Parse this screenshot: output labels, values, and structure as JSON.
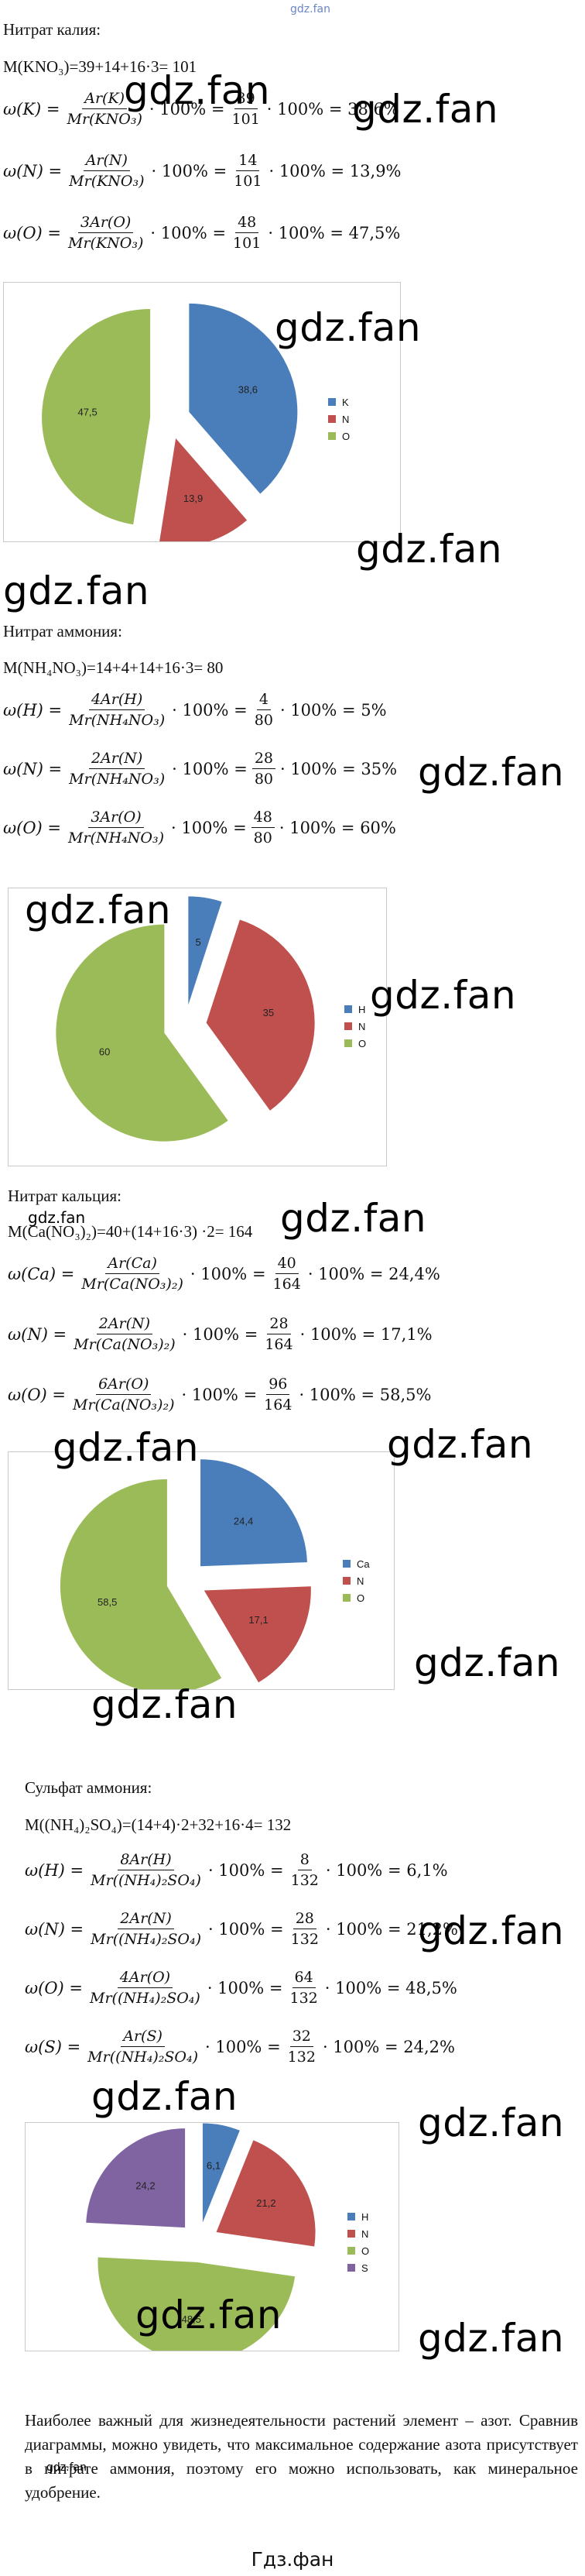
{
  "top_mark": "gdz.fan",
  "sections": [
    {
      "heading": "Нитрат калия:",
      "mass": "M(KNO₃)=39+14+16·3= 101",
      "formulas": [
        {
          "lhs": "ω(K) =",
          "num1": "Ar(K)",
          "den1": "Mr(KNO₃)",
          "mid": "· 100% =",
          "num2": "39",
          "den2": "101",
          "rhs": "· 100% = 38,6%"
        },
        {
          "lhs": "ω(N) =",
          "num1": "Ar(N)",
          "den1": "Mr(KNO₃)",
          "mid": "· 100% =",
          "num2": "14",
          "den2": "101",
          "rhs": "· 100% = 13,9%"
        },
        {
          "lhs": "ω(O) =",
          "num1": "3Ar(O)",
          "den1": "Mr(KNO₃)",
          "mid": "· 100% =",
          "num2": "48",
          "den2": "101",
          "rhs": "· 100% = 47,5%"
        }
      ]
    },
    {
      "heading": "Нитрат аммония:",
      "mass": "M(NH₄NO₃)=14+4+14+16·3= 80",
      "formulas": [
        {
          "lhs": "ω(H) =",
          "num1": "4Ar(H)",
          "den1": "Mr(NH₄NO₃)",
          "mid": "· 100% =",
          "num2": "4",
          "den2": "80",
          "rhs": "· 100% = 5%"
        },
        {
          "lhs": "ω(N) =",
          "num1": "2Ar(N)",
          "den1": "Mr(NH₄NO₃)",
          "mid": "· 100% =",
          "num2": "28",
          "den2": "80",
          "rhs": "· 100% = 35%"
        },
        {
          "lhs": "ω(O) =",
          "num1": "3Ar(O)",
          "den1": "Mr(NH₄NO₃)",
          "mid": "· 100% =",
          "num2": "48",
          "den2": "80",
          "rhs": "· 100% = 60%"
        }
      ]
    },
    {
      "heading": "Нитрат кальция:",
      "mass": "M(Ca(NO₃)₂)=40+(14+16·3) ·2= 164",
      "formulas": [
        {
          "lhs": "ω(Ca) =",
          "num1": "Ar(Ca)",
          "den1": "Mr(Ca(NO₃)₂)",
          "mid": "· 100% =",
          "num2": "40",
          "den2": "164",
          "rhs": "· 100% = 24,4%"
        },
        {
          "lhs": "ω(N) =",
          "num1": "2Ar(N)",
          "den1": "Mr(Ca(NO₃)₂)",
          "mid": "· 100% =",
          "num2": "28",
          "den2": "164",
          "rhs": "· 100% = 17,1%"
        },
        {
          "lhs": "ω(O) =",
          "num1": "6Ar(O)",
          "den1": "Mr(Ca(NO₃)₂)",
          "mid": "· 100% =",
          "num2": "96",
          "den2": "164",
          "rhs": "· 100% = 58,5%"
        }
      ]
    },
    {
      "heading": "Сульфат аммония:",
      "mass": "M((NH₄)₂SO₄)=(14+4)·2+32+16·4= 132",
      "formulas": [
        {
          "lhs": "ω(H) =",
          "num1": "8Ar(H)",
          "den1": "Mr((NH₄)₂SO₄)",
          "mid": "· 100% =",
          "num2": "8",
          "den2": "132",
          "rhs": "· 100% = 6,1%"
        },
        {
          "lhs": "ω(N) =",
          "num1": "2Ar(N)",
          "den1": "Mr((NH₄)₂SO₄)",
          "mid": "· 100% =",
          "num2": "28",
          "den2": "132",
          "rhs": "· 100% = 21,2%"
        },
        {
          "lhs": "ω(O) =",
          "num1": "4Ar(O)",
          "den1": "Mr((NH₄)₂SO₄)",
          "mid": "· 100% =",
          "num2": "64",
          "den2": "132",
          "rhs": "· 100% = 48,5%"
        },
        {
          "lhs": "ω(S) =",
          "num1": "Ar(S)",
          "den1": "Mr((NH₄)₂SO₄)",
          "mid": "· 100% =",
          "num2": "32",
          "den2": "132",
          "rhs": "· 100% = 24,2%"
        }
      ]
    }
  ],
  "chart_data": [
    {
      "type": "pie",
      "slices": [
        {
          "label": "K",
          "value": 38.6,
          "text": "38,6"
        },
        {
          "label": "N",
          "value": 13.9,
          "text": "13,9"
        },
        {
          "label": "O",
          "value": 47.5,
          "text": "47,5"
        }
      ],
      "legend": [
        "K",
        "N",
        "O"
      ],
      "legend_position": "right",
      "colors": {
        "K": "#4a7ebb",
        "N": "#c0504d",
        "O": "#9bbb59"
      }
    },
    {
      "type": "pie",
      "slices": [
        {
          "label": "H",
          "value": 5,
          "text": "5"
        },
        {
          "label": "N",
          "value": 35,
          "text": "35"
        },
        {
          "label": "O",
          "value": 60,
          "text": "60"
        }
      ],
      "legend": [
        "H",
        "N",
        "O"
      ],
      "legend_position": "right",
      "colors": {
        "H": "#4a7ebb",
        "N": "#c0504d",
        "O": "#9bbb59"
      }
    },
    {
      "type": "pie",
      "slices": [
        {
          "label": "Ca",
          "value": 24.4,
          "text": "24,4"
        },
        {
          "label": "N",
          "value": 17.1,
          "text": "17,1"
        },
        {
          "label": "O",
          "value": 58.5,
          "text": "58,5"
        }
      ],
      "legend": [
        "Ca",
        "N",
        "O"
      ],
      "legend_position": "right",
      "colors": {
        "Ca": "#4a7ebb",
        "N": "#c0504d",
        "O": "#9bbb59"
      }
    },
    {
      "type": "pie",
      "slices": [
        {
          "label": "H",
          "value": 6.1,
          "text": "6,1"
        },
        {
          "label": "N",
          "value": 21.2,
          "text": "21,2"
        },
        {
          "label": "O",
          "value": 48.5,
          "text": "48,5"
        },
        {
          "label": "S",
          "value": 24.2,
          "text": "24,2"
        }
      ],
      "legend": [
        "H",
        "N",
        "O",
        "S"
      ],
      "legend_position": "right",
      "colors": {
        "H": "#4a7ebb",
        "N": "#c0504d",
        "O": "#9bbb59",
        "S": "#8064a2"
      }
    }
  ],
  "conclusion": "Наиболее важный для жизнедеятельности растений элемент – азот. Сравнив диаграммы, можно увидеть, что максимальное содержание азота присутствует в нитрате аммония, поэтому его можно использовать, как минеральное удобрение.",
  "watermark": "gdz.fan",
  "footer": "Гдз.фан"
}
